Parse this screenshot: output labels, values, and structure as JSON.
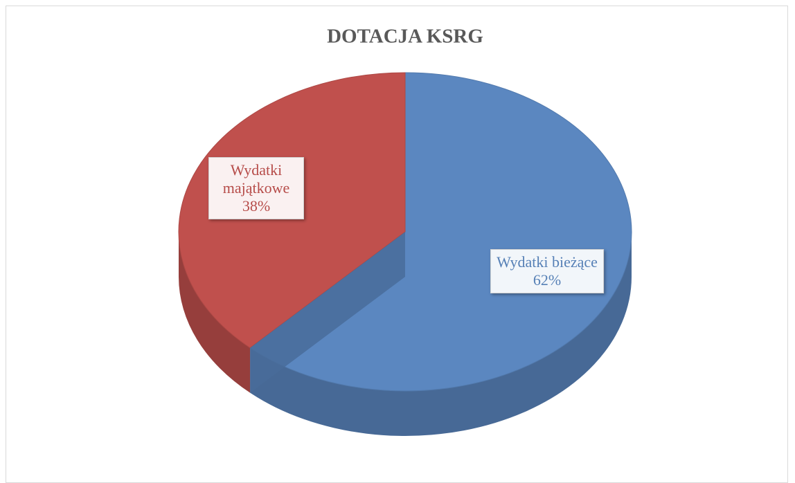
{
  "chart_data": {
    "type": "pie",
    "title": "DOTACJA KSRG",
    "categories": [
      "Wydatki bieżące",
      "Wydatki majątkowe"
    ],
    "values": [
      62,
      38
    ],
    "value_labels": [
      "62%",
      "38%"
    ],
    "colors": [
      "#5b87c0",
      "#c0504d"
    ]
  }
}
